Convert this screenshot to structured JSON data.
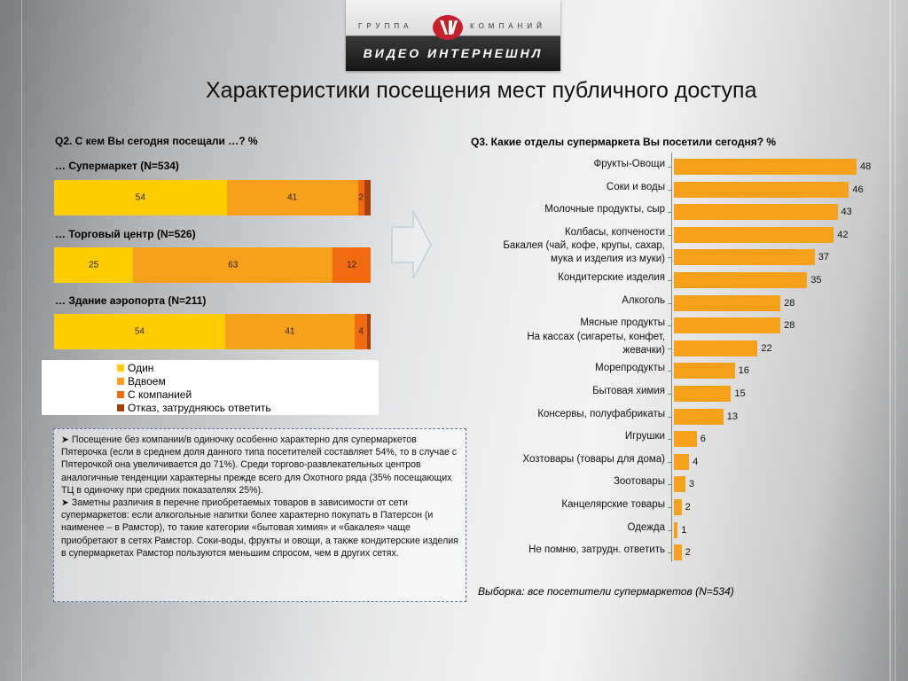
{
  "logo": {
    "top_left": "ГРУППА",
    "top_right": "КОМПАНИЙ",
    "bottom": "ВИДЕО ИНТЕРНЕШНЛ"
  },
  "title": "Характеристики посещения мест публичного доступа",
  "colors": {
    "alone": "#ffcc00",
    "together": "#f7a11a",
    "company": "#f26a10",
    "refusal": "#a8400a",
    "bar": "#f7a11a"
  },
  "q2": {
    "title": "Q2. С кем Вы сегодня посещали …? %",
    "legend": [
      "Один",
      "Вдвоем",
      "С компанией",
      "Отказ, затрудняюсь ответить"
    ]
  },
  "q3": {
    "title": "Q3. Какие отделы супермаркета Вы посетили сегодня? %",
    "footnote": "Выборка: все посетители супермаркетов (N=534)"
  },
  "note": {
    "p1": "Посещение без компании/в одиночку особенно характерно для супермаркетов Пятерочка (если в среднем доля данного типа посетителей составляет 54%, то в случае с Пятерочкой она увеличивается до 71%). Среди торгово-развлекательных центров аналогичные тенденции характерны прежде всего для Охотного ряда (35% посещающих ТЦ в одиночку при средних показателях 25%).",
    "p2": "Заметны различия в перечне приобретаемых товаров в зависимости от сети супермаркетов: если алкогольные напитки более характерно покупать в Патерсон (и наименее – в Рамстор), то такие категории «бытовая химия» и «бакалея» чаще приобретают в сетях Рамстор. Соки-воды, фрукты и овощи, а также кондитерские изделия в супермаркетах Рамстор пользуются меньшим спросом, чем в других сетях."
  },
  "chart_data": [
    {
      "type": "bar",
      "orientation": "horizontal-stacked",
      "title": "Q2. С кем Вы сегодня посещали …? %",
      "categories": [
        "… Супермаркет (N=534)",
        "… Торговый центр (N=526)",
        "… Здание аэропорта (N=211)"
      ],
      "series": [
        {
          "name": "Один",
          "values": [
            54,
            25,
            54
          ]
        },
        {
          "name": "Вдвоем",
          "values": [
            41,
            63,
            41
          ]
        },
        {
          "name": "С компанией",
          "values": [
            2,
            12,
            4
          ]
        },
        {
          "name": "Отказ, затрудняюсь ответить",
          "values": [
            2,
            0,
            1
          ]
        }
      ],
      "data_labels": [
        [
          "54",
          "41",
          "2",
          ""
        ],
        [
          "25",
          "63",
          "12",
          ""
        ],
        [
          "54",
          "41",
          "4",
          ""
        ]
      ],
      "legend": "bottom"
    },
    {
      "type": "bar",
      "orientation": "horizontal",
      "title": "Q3. Какие отделы супермаркета Вы посетили сегодня? %",
      "categories": [
        "Фрукты-Овощи",
        "Соки и воды",
        "Молочные продукты, сыр",
        "Колбасы, копчености",
        "Бакалея (чай, кофе, крупы, сахар, мука и изделия из муки)",
        "Кондитерские изделия",
        "Алкоголь",
        "Мясные продукты",
        "На кассах (сигареты, конфет, жевачки)",
        "Морепродукты",
        "Бытовая химия",
        "Консервы, полуфабрикаты",
        "Игрушки",
        "Хозтовары (товары для дома)",
        "Зоотовары",
        "Канцелярские товары",
        "Одежда",
        "Не помню, затрудн. ответить"
      ],
      "values": [
        48,
        46,
        43,
        42,
        37,
        35,
        28,
        28,
        22,
        16,
        15,
        13,
        6,
        4,
        3,
        2,
        1,
        2
      ],
      "xlim": [
        0,
        50
      ]
    }
  ]
}
